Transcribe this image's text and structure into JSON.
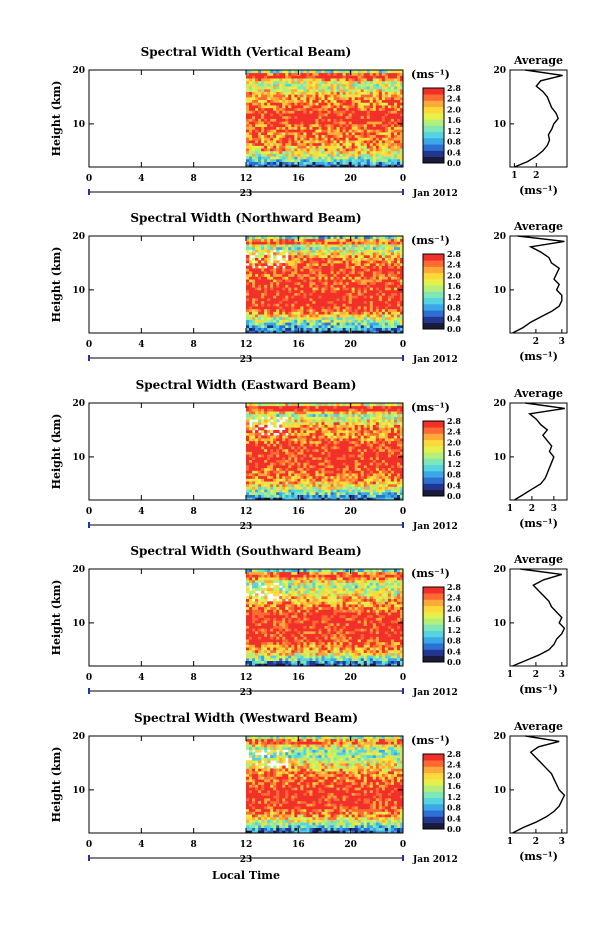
{
  "figure": {
    "xlabel": "Local Time",
    "ylabel": "Height (km)",
    "date_label": "Jan 2012",
    "day_label": "23",
    "units": "(ms⁻¹)",
    "units_avg": "(ms⁻¹)",
    "avg_title": "Average",
    "colorbar_ticks": [
      "2.8",
      "2.4",
      "2.0",
      "1.6",
      "1.2",
      "0.8",
      "0.4",
      "0.0"
    ],
    "colormap": [
      "#1a1a3a",
      "#22358f",
      "#2d6fd2",
      "#3aa8e6",
      "#56d3e0",
      "#7fe6b5",
      "#b4ef7a",
      "#e6f04a",
      "#ffd93a",
      "#ffa93a",
      "#ff6a33",
      "#f2302a"
    ]
  },
  "chart_data": [
    {
      "type": "heatmap",
      "title": "Spectral Width (Vertical Beam)",
      "xlabel": "Local Time",
      "ylabel": "Height (km)",
      "xticks": [
        "0",
        "4",
        "8",
        "12",
        "16",
        "20",
        "0"
      ],
      "xlim": [
        0,
        24
      ],
      "yticks": [
        "20",
        "10"
      ],
      "ylim": [
        2,
        20
      ],
      "data_start_hour": 12,
      "colorbar": {
        "label": "(ms⁻¹)",
        "range": [
          0.0,
          2.8
        ]
      },
      "average_profile": {
        "title": "Average",
        "xlabel": "(ms⁻¹)",
        "xticks": [
          "1",
          "2"
        ],
        "xlim": [
          0.8,
          3.4
        ],
        "height": [
          2,
          3,
          4,
          5,
          6,
          7,
          8,
          9,
          10,
          11,
          12,
          13,
          14,
          15,
          16,
          17,
          18,
          19,
          20
        ],
        "values": [
          1.0,
          1.6,
          2.0,
          2.3,
          2.5,
          2.6,
          2.55,
          2.7,
          2.8,
          3.0,
          2.9,
          2.7,
          2.6,
          2.5,
          2.3,
          2.0,
          2.2,
          3.2,
          1.5
        ]
      }
    },
    {
      "type": "heatmap",
      "title": "Spectral Width (Northward Beam)",
      "xlabel": "Local Time",
      "ylabel": "Height (km)",
      "xticks": [
        "0",
        "4",
        "8",
        "12",
        "16",
        "20",
        "0"
      ],
      "xlim": [
        0,
        24
      ],
      "yticks": [
        "20",
        "10"
      ],
      "ylim": [
        2,
        20
      ],
      "data_start_hour": 12,
      "colorbar": {
        "label": "(ms⁻¹)",
        "range": [
          0.0,
          2.8
        ]
      },
      "average_profile": {
        "title": "Average",
        "xlabel": "(ms⁻¹)",
        "xticks": [
          "2",
          "3"
        ],
        "xlim": [
          1.0,
          3.2
        ],
        "height": [
          2,
          3,
          4,
          5,
          6,
          7,
          8,
          9,
          10,
          11,
          12,
          13,
          14,
          15,
          16,
          17,
          18,
          19,
          20
        ],
        "values": [
          1.1,
          1.5,
          1.8,
          2.2,
          2.6,
          2.9,
          3.0,
          3.0,
          2.8,
          2.9,
          2.7,
          2.8,
          2.9,
          2.6,
          2.5,
          2.2,
          1.8,
          3.1,
          1.3
        ]
      }
    },
    {
      "type": "heatmap",
      "title": "Spectral Width (Eastward Beam)",
      "xlabel": "Local Time",
      "ylabel": "Height (km)",
      "xticks": [
        "0",
        "4",
        "8",
        "12",
        "16",
        "20",
        "0"
      ],
      "xlim": [
        0,
        24
      ],
      "yticks": [
        "20",
        "10"
      ],
      "ylim": [
        2,
        20
      ],
      "data_start_hour": 12,
      "colorbar": {
        "label": "(ms⁻¹)",
        "range": [
          0.0,
          2.8
        ]
      },
      "average_profile": {
        "title": "Average",
        "xlabel": "(ms⁻¹)",
        "xticks": [
          "1",
          "2",
          "3"
        ],
        "xlim": [
          1.0,
          3.6
        ],
        "height": [
          2,
          3,
          4,
          5,
          6,
          7,
          8,
          9,
          10,
          11,
          12,
          13,
          14,
          15,
          16,
          17,
          18,
          19,
          20
        ],
        "values": [
          1.2,
          1.6,
          2.0,
          2.4,
          2.6,
          2.7,
          2.8,
          2.9,
          3.0,
          2.8,
          2.9,
          2.7,
          2.5,
          2.7,
          2.4,
          2.2,
          1.9,
          3.5,
          1.7
        ]
      }
    },
    {
      "type": "heatmap",
      "title": "Spectral Width (Southward Beam)",
      "xlabel": "Local Time",
      "ylabel": "Height (km)",
      "xticks": [
        "0",
        "4",
        "8",
        "12",
        "16",
        "20",
        "0"
      ],
      "xlim": [
        0,
        24
      ],
      "yticks": [
        "20",
        "10"
      ],
      "ylim": [
        2,
        20
      ],
      "data_start_hour": 12,
      "colorbar": {
        "label": "(ms⁻¹)",
        "range": [
          0.0,
          2.8
        ]
      },
      "average_profile": {
        "title": "Average",
        "xlabel": "(ms⁻¹)",
        "xticks": [
          "1",
          "2",
          "3"
        ],
        "xlim": [
          1.0,
          3.2
        ],
        "height": [
          2,
          3,
          4,
          5,
          6,
          7,
          8,
          9,
          10,
          11,
          12,
          13,
          14,
          15,
          16,
          17,
          18,
          19,
          20
        ],
        "values": [
          1.1,
          1.6,
          2.1,
          2.5,
          2.7,
          2.8,
          3.0,
          3.1,
          2.9,
          3.0,
          2.8,
          2.6,
          2.5,
          2.3,
          2.1,
          1.9,
          2.3,
          3.0,
          1.4
        ]
      }
    },
    {
      "type": "heatmap",
      "title": "Spectral Width (Westward Beam)",
      "xlabel": "Local Time",
      "ylabel": "Height (km)",
      "xticks": [
        "0",
        "4",
        "8",
        "12",
        "16",
        "20",
        "0"
      ],
      "xlim": [
        0,
        24
      ],
      "yticks": [
        "20",
        "10"
      ],
      "ylim": [
        2,
        20
      ],
      "data_start_hour": 12,
      "colorbar": {
        "label": "(ms⁻¹)",
        "range": [
          0.0,
          2.8
        ]
      },
      "average_profile": {
        "title": "Average",
        "xlabel": "(ms⁻¹)",
        "xticks": [
          "1",
          "2",
          "3"
        ],
        "xlim": [
          1.0,
          3.2
        ],
        "height": [
          2,
          3,
          4,
          5,
          6,
          7,
          8,
          9,
          10,
          11,
          12,
          13,
          14,
          15,
          16,
          17,
          18,
          19,
          20
        ],
        "values": [
          1.1,
          1.5,
          2.0,
          2.4,
          2.7,
          2.9,
          3.0,
          3.1,
          2.9,
          2.8,
          2.7,
          2.6,
          2.4,
          2.2,
          2.0,
          1.8,
          2.1,
          2.9,
          1.6
        ]
      }
    }
  ]
}
